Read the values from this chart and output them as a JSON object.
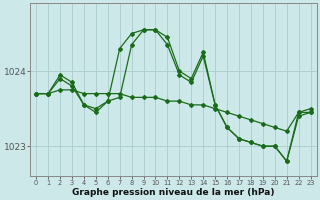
{
  "xlabel": "Graphe pression niveau de la mer (hPa)",
  "background_color": "#cce8e8",
  "grid_color": "#aacccc",
  "line_color": "#1a6b1a",
  "x_ticks": [
    0,
    1,
    2,
    3,
    4,
    5,
    6,
    7,
    8,
    9,
    10,
    11,
    12,
    13,
    14,
    15,
    16,
    17,
    18,
    19,
    20,
    21,
    22,
    23
  ],
  "ylim": [
    1022.6,
    1024.9
  ],
  "yticks": [
    1023,
    1024
  ],
  "series1": [
    1023.7,
    1023.7,
    1023.9,
    1023.8,
    1023.55,
    1023.5,
    1023.6,
    1024.3,
    1024.5,
    1024.55,
    1024.55,
    1024.35,
    1023.95,
    1023.85,
    1024.2,
    1023.55,
    1023.25,
    1023.1,
    1023.05,
    1023.0,
    1023.0,
    1022.8,
    1023.4,
    1023.45
  ],
  "series2": [
    1023.7,
    1023.7,
    1023.95,
    1023.85,
    1023.55,
    1023.45,
    1023.6,
    1023.65,
    1024.35,
    1024.55,
    1024.55,
    1024.45,
    1024.0,
    1023.9,
    1024.25,
    1023.55,
    1023.25,
    1023.1,
    1023.05,
    1023.0,
    1023.0,
    1022.8,
    1023.45,
    1023.5
  ],
  "series3": [
    1023.7,
    1023.7,
    1023.75,
    1023.75,
    1023.7,
    1023.7,
    1023.7,
    1023.7,
    1023.65,
    1023.65,
    1023.65,
    1023.6,
    1023.6,
    1023.55,
    1023.55,
    1023.5,
    1023.45,
    1023.4,
    1023.35,
    1023.3,
    1023.25,
    1023.2,
    1023.45,
    1023.45
  ]
}
